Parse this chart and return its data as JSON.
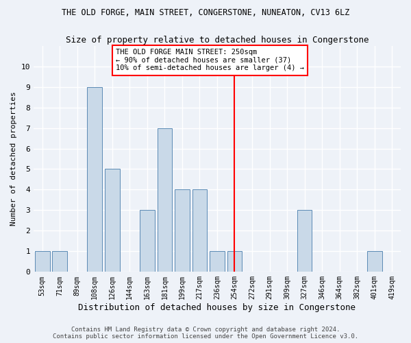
{
  "title": "THE OLD FORGE, MAIN STREET, CONGERSTONE, NUNEATON, CV13 6LZ",
  "subtitle": "Size of property relative to detached houses in Congerstone",
  "xlabel": "Distribution of detached houses by size in Congerstone",
  "ylabel": "Number of detached properties",
  "footer_line1": "Contains HM Land Registry data © Crown copyright and database right 2024.",
  "footer_line2": "Contains public sector information licensed under the Open Government Licence v3.0.",
  "bar_labels": [
    "53sqm",
    "71sqm",
    "89sqm",
    "108sqm",
    "126sqm",
    "144sqm",
    "163sqm",
    "181sqm",
    "199sqm",
    "217sqm",
    "236sqm",
    "254sqm",
    "272sqm",
    "291sqm",
    "309sqm",
    "327sqm",
    "346sqm",
    "364sqm",
    "382sqm",
    "401sqm",
    "419sqm"
  ],
  "bar_values": [
    1,
    1,
    0,
    9,
    5,
    0,
    3,
    7,
    4,
    4,
    1,
    1,
    0,
    0,
    0,
    3,
    0,
    0,
    0,
    1,
    0
  ],
  "bar_color": "#c9d9e8",
  "bar_edge_color": "#5a8ab5",
  "ylim": [
    0,
    11
  ],
  "yticks": [
    0,
    1,
    2,
    3,
    4,
    5,
    6,
    7,
    8,
    9,
    10,
    11
  ],
  "vline_idx": 11,
  "vline_color": "red",
  "annotation_text": "THE OLD FORGE MAIN STREET: 250sqm\n← 90% of detached houses are smaller (37)\n10% of semi-detached houses are larger (4) →",
  "background_color": "#eef2f8",
  "grid_color": "#ffffff",
  "title_fontsize": 8.5,
  "subtitle_fontsize": 9,
  "xlabel_fontsize": 9,
  "ylabel_fontsize": 8,
  "tick_fontsize": 7,
  "footer_fontsize": 6.5
}
